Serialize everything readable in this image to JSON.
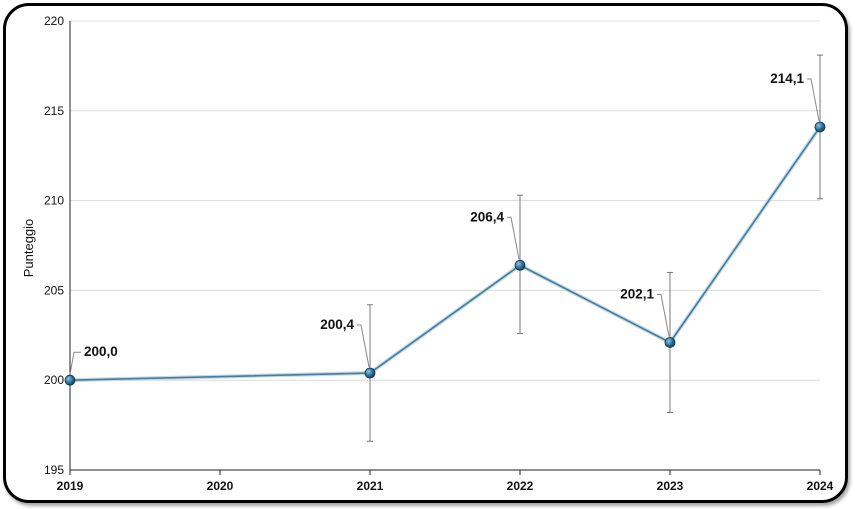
{
  "chart_data": {
    "type": "line",
    "title": "",
    "xlabel": "",
    "ylabel": "Punteggio",
    "ylim": [
      195,
      220
    ],
    "yticks": [
      195,
      200,
      205,
      210,
      215,
      220
    ],
    "x_ticks": [
      2019,
      2020,
      2021,
      2022,
      2023,
      2024
    ],
    "grid": "horizontal",
    "legend": "none",
    "line_color": "#3e7fa3",
    "marker_color": "#1f5f86",
    "error_bar_color": "#777777",
    "series": [
      {
        "x": [
          2019,
          2021,
          2022,
          2023,
          2024
        ],
        "values": [
          200.0,
          200.4,
          206.4,
          202.1,
          214.1
        ],
        "labels": [
          "200,0",
          "200,4",
          "206,4",
          "202,1",
          "214,1"
        ],
        "error_low": [
          null,
          196.6,
          202.6,
          198.2,
          210.1
        ],
        "error_high": [
          null,
          204.2,
          210.3,
          206.0,
          218.1
        ]
      }
    ]
  }
}
